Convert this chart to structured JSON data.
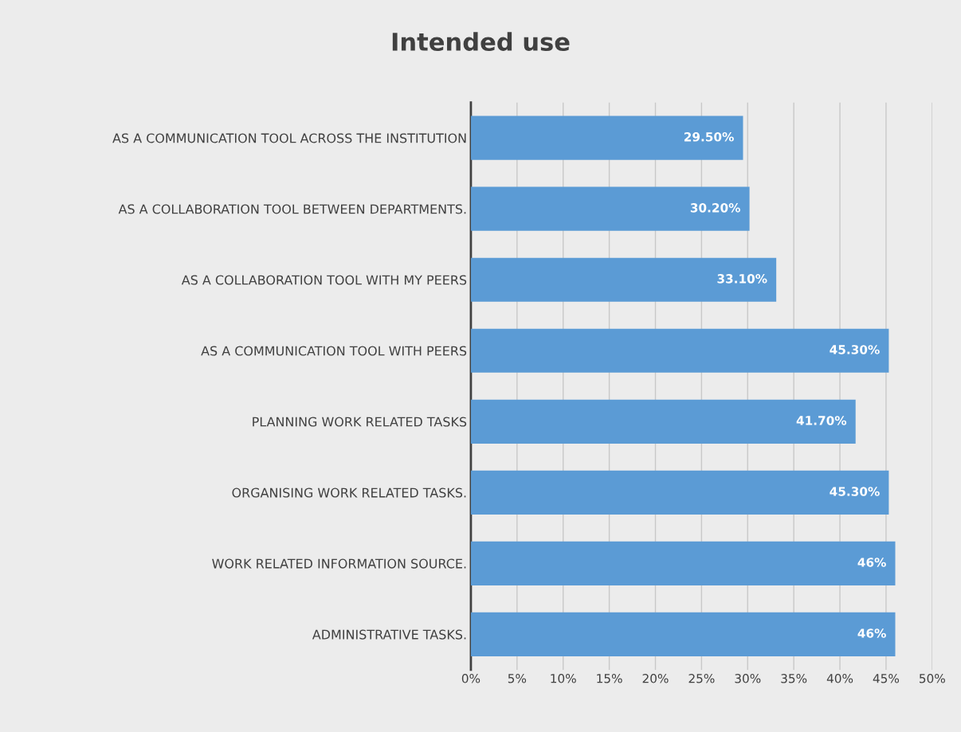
{
  "chart_data": {
    "type": "bar",
    "orientation": "horizontal",
    "title": "Intended use",
    "categories": [
      "AS A COMMUNICATION TOOL ACROSS THE INSTITUTION",
      "AS A COLLABORATION TOOL BETWEEN DEPARTMENTS.",
      "AS A COLLABORATION TOOL WITH MY PEERS",
      "AS A COMMUNICATION TOOL WITH PEERS",
      "PLANNING WORK RELATED TASKS",
      "ORGANISING WORK RELATED TASKS.",
      "WORK RELATED INFORMATION SOURCE.",
      "ADMINISTRATIVE TASKS."
    ],
    "values": [
      29.5,
      30.2,
      33.1,
      45.3,
      41.7,
      45.3,
      46,
      46
    ],
    "value_labels": [
      "29.50%",
      "30.20%",
      "33.10%",
      "45.30%",
      "41.70%",
      "45.30%",
      "46%",
      "46%"
    ],
    "color": "#5b9bd5",
    "xlim": [
      0,
      50
    ],
    "xticks": [
      {
        "value": 0,
        "label": "0%"
      },
      {
        "value": 5,
        "label": "5%"
      },
      {
        "value": 10,
        "label": "10%"
      },
      {
        "value": 15,
        "label": "15%"
      },
      {
        "value": 20,
        "label": "20%"
      },
      {
        "value": 25,
        "label": "25%"
      },
      {
        "value": 30,
        "label": "30%"
      },
      {
        "value": 35,
        "label": "35%"
      },
      {
        "value": 40,
        "label": "40%"
      },
      {
        "value": 45,
        "label": "45%"
      },
      {
        "value": 50,
        "label": "50%"
      }
    ],
    "grid": "x"
  }
}
